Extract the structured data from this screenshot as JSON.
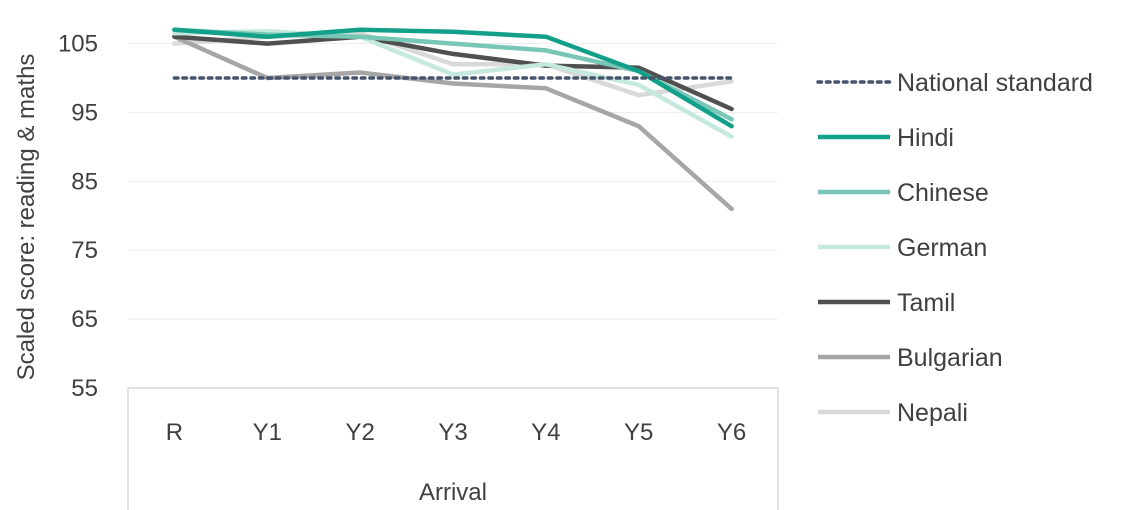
{
  "chart_data": {
    "type": "line",
    "title": "",
    "xlabel": "Arrival",
    "ylabel": "Scaled score: reading & maths",
    "ylim": [
      55,
      109
    ],
    "yticks": [
      55,
      65,
      75,
      85,
      95,
      105
    ],
    "grid": true,
    "legend": "right",
    "categories": [
      "R",
      "Y1",
      "Y2",
      "Y3",
      "Y4",
      "Y5",
      "Y6"
    ],
    "series": [
      {
        "name": "National standard",
        "values": [
          100,
          100,
          100,
          100,
          100,
          100,
          100
        ],
        "color": "#44546a",
        "style": "dotted"
      },
      {
        "name": "Hindi",
        "values": [
          107,
          106,
          107,
          106.7,
          106,
          101,
          93
        ],
        "color": "#13a08a",
        "style": "solid"
      },
      {
        "name": "Chinese",
        "values": [
          107,
          106.3,
          106,
          105,
          104,
          101,
          94
        ],
        "color": "#78c6b5",
        "style": "solid"
      },
      {
        "name": "German",
        "values": [
          106.5,
          106.8,
          106,
          100.5,
          102,
          99,
          91.5
        ],
        "color": "#c5e8df",
        "style": "solid"
      },
      {
        "name": "Tamil",
        "values": [
          106,
          105,
          106,
          103.5,
          101.8,
          101.5,
          95.5
        ],
        "color": "#505050",
        "style": "solid"
      },
      {
        "name": "Bulgarian",
        "values": [
          106,
          100,
          100.8,
          99.2,
          98.5,
          93,
          81
        ],
        "color": "#a6a6a6",
        "style": "solid"
      },
      {
        "name": "Nepali",
        "values": [
          105,
          106,
          106.5,
          102,
          102,
          97.5,
          99.5
        ],
        "color": "#d9d9d9",
        "style": "solid"
      }
    ]
  }
}
